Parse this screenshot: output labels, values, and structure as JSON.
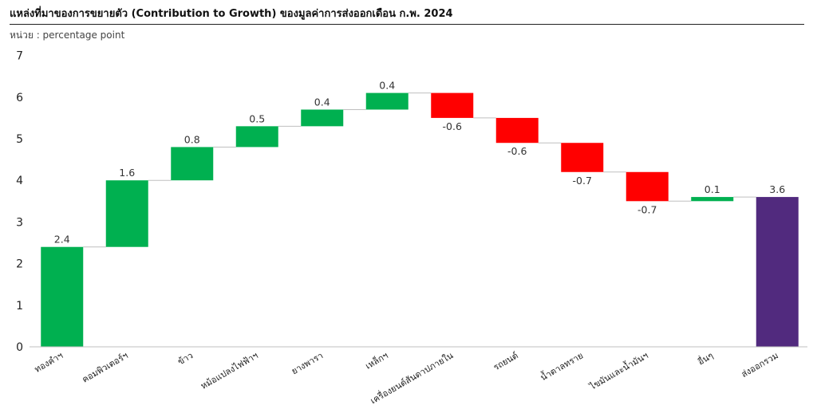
{
  "title": "แหล่งที่มาของการขยายตัว (Contribution to Growth) ของมูลค่าการส่งออกเดือน ก.พ. 2024",
  "unit_label": "หน่วย : percentage point",
  "colors": {
    "positive": "#00b050",
    "negative": "#ff0000",
    "total": "#512a7e",
    "connector": "#bfbfbf",
    "axis": "#bfbfbf"
  },
  "chart_data": {
    "type": "bar",
    "subtype": "waterfall",
    "categories": [
      "ทองคำฯ",
      "คอมพิวเตอร์ฯ",
      "ข้าว",
      "หม้อแปลงไฟฟ้าฯ",
      "ยางพารา",
      "เหล็กฯ",
      "เครื่องยนต์สันดาปภายใน",
      "รถยนต์",
      "น้ำตาลทราย",
      "ไขมันและน้ำมันฯ",
      "อื่นๆ",
      "ส่งออกรวม"
    ],
    "values": [
      2.4,
      1.6,
      0.8,
      0.5,
      0.4,
      0.4,
      -0.6,
      -0.6,
      -0.7,
      -0.7,
      0.1,
      3.6
    ],
    "value_labels": [
      "2.4",
      "1.6",
      "0.8",
      "0.5",
      "0.4",
      "0.4",
      "-0.6",
      "-0.6",
      "-0.7",
      "-0.7",
      "0.1",
      "3.6"
    ],
    "bases": [
      0,
      2.4,
      4.0,
      4.8,
      5.3,
      5.7,
      6.1,
      5.5,
      4.9,
      4.2,
      3.5,
      0
    ],
    "kinds": [
      "pos",
      "pos",
      "pos",
      "pos",
      "pos",
      "pos",
      "neg",
      "neg",
      "neg",
      "neg",
      "pos",
      "total"
    ],
    "ylim": [
      0,
      7
    ],
    "yticks": [
      "0",
      "1",
      "2",
      "3",
      "4",
      "5",
      "6",
      "7"
    ],
    "xlabel": "",
    "ylabel": "",
    "grid": false,
    "legend": "none"
  }
}
